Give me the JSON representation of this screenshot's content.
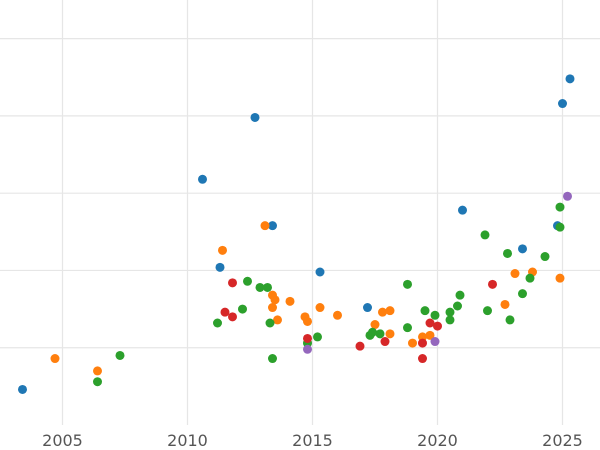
{
  "chart_data": {
    "type": "scatter",
    "title": "",
    "xlabel": "",
    "ylabel": "",
    "grid": true,
    "legend": "none",
    "xlim": [
      2002.5,
      2026.5
    ],
    "ylim": [
      0,
      27.5
    ],
    "x_ticks": [
      2005,
      2010,
      2015,
      2020,
      2025
    ],
    "x_tick_labels": [
      "2005",
      "2010",
      "2015",
      "2020",
      "2025"
    ],
    "y_gridlines": [
      5,
      10,
      15,
      20,
      25
    ],
    "series": [
      {
        "color": "#1f77b4",
        "points": [
          [
            2003.4,
            2.3
          ],
          [
            2010.6,
            15.9
          ],
          [
            2011.3,
            10.2
          ],
          [
            2012.7,
            19.9
          ],
          [
            2013.4,
            12.9
          ],
          [
            2015.3,
            9.9
          ],
          [
            2017.2,
            7.6
          ],
          [
            2021.0,
            13.9
          ],
          [
            2023.4,
            11.4
          ],
          [
            2024.8,
            12.9
          ],
          [
            2025.0,
            20.8
          ],
          [
            2025.3,
            22.4
          ]
        ]
      },
      {
        "color": "#ff7f0e",
        "points": [
          [
            2004.7,
            4.3
          ],
          [
            2006.4,
            3.5
          ],
          [
            2011.4,
            11.3
          ],
          [
            2013.1,
            12.9
          ],
          [
            2013.4,
            8.4
          ],
          [
            2013.5,
            8.1
          ],
          [
            2013.4,
            7.6
          ],
          [
            2013.6,
            6.8
          ],
          [
            2014.1,
            8.0
          ],
          [
            2014.7,
            7.0
          ],
          [
            2014.8,
            6.7
          ],
          [
            2015.3,
            7.6
          ],
          [
            2016.0,
            7.1
          ],
          [
            2017.5,
            6.5
          ],
          [
            2017.8,
            7.3
          ],
          [
            2018.1,
            7.4
          ],
          [
            2018.1,
            5.9
          ],
          [
            2019.0,
            5.3
          ],
          [
            2019.4,
            5.7
          ],
          [
            2019.7,
            5.8
          ],
          [
            2022.7,
            7.8
          ],
          [
            2023.1,
            9.8
          ],
          [
            2023.8,
            9.9
          ],
          [
            2024.9,
            9.5
          ]
        ]
      },
      {
        "color": "#2ca02c",
        "points": [
          [
            2006.4,
            2.8
          ],
          [
            2007.3,
            4.5
          ],
          [
            2011.2,
            6.6
          ],
          [
            2012.2,
            7.5
          ],
          [
            2012.4,
            9.3
          ],
          [
            2012.9,
            8.9
          ],
          [
            2013.2,
            8.9
          ],
          [
            2013.3,
            6.6
          ],
          [
            2013.4,
            4.3
          ],
          [
            2014.8,
            5.3
          ],
          [
            2015.2,
            5.7
          ],
          [
            2017.3,
            5.8
          ],
          [
            2017.4,
            6.0
          ],
          [
            2017.7,
            5.9
          ],
          [
            2018.8,
            9.1
          ],
          [
            2018.8,
            6.3
          ],
          [
            2019.5,
            7.4
          ],
          [
            2019.9,
            7.1
          ],
          [
            2020.5,
            7.3
          ],
          [
            2020.5,
            6.8
          ],
          [
            2020.8,
            7.7
          ],
          [
            2020.9,
            8.4
          ],
          [
            2021.9,
            12.3
          ],
          [
            2022.0,
            7.4
          ],
          [
            2022.8,
            11.1
          ],
          [
            2022.9,
            6.8
          ],
          [
            2023.4,
            8.5
          ],
          [
            2023.7,
            9.5
          ],
          [
            2024.3,
            10.9
          ],
          [
            2024.9,
            12.8
          ],
          [
            2024.9,
            14.1
          ]
        ]
      },
      {
        "color": "#d62728",
        "points": [
          [
            2011.5,
            7.3
          ],
          [
            2011.8,
            9.2
          ],
          [
            2011.8,
            7.0
          ],
          [
            2014.8,
            5.6
          ],
          [
            2016.9,
            5.1
          ],
          [
            2017.9,
            5.4
          ],
          [
            2019.4,
            5.3
          ],
          [
            2019.4,
            4.3
          ],
          [
            2019.7,
            6.6
          ],
          [
            2020.0,
            6.4
          ],
          [
            2022.2,
            9.1
          ]
        ]
      },
      {
        "color": "#9467bd",
        "points": [
          [
            2014.8,
            4.9
          ],
          [
            2019.9,
            5.4
          ],
          [
            2025.2,
            14.8
          ]
        ]
      }
    ]
  }
}
